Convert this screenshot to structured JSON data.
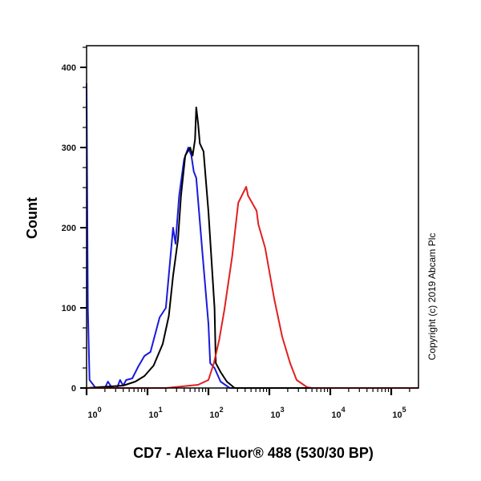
{
  "chart_data": {
    "type": "line",
    "title": "",
    "xlabel": "CD7 - Alexa Fluor® 488 (530/30 BP)",
    "ylabel": "Count",
    "x_scale": "log",
    "xlim": [
      1,
      280000
    ],
    "ylim": [
      0,
      427
    ],
    "x_tick_labels": [
      {
        "value": 1,
        "base": "10",
        "exp": "0"
      },
      {
        "value": 10,
        "base": "10",
        "exp": "1"
      },
      {
        "value": 100,
        "base": "10",
        "exp": "2"
      },
      {
        "value": 1000,
        "base": "10",
        "exp": "3"
      },
      {
        "value": 10000,
        "base": "10",
        "exp": "4"
      },
      {
        "value": 100000,
        "base": "10",
        "exp": "5"
      }
    ],
    "y_ticks": [
      0,
      100,
      200,
      300,
      400
    ],
    "grid": false,
    "legend": "none",
    "series": [
      {
        "color": "#1a1adc",
        "points": [
          [
            1,
            380
          ],
          [
            1.05,
            100
          ],
          [
            1.12,
            10
          ],
          [
            1.26,
            5
          ],
          [
            1.41,
            0
          ],
          [
            2,
            0
          ],
          [
            2.24,
            8
          ],
          [
            2.63,
            0
          ],
          [
            3.16,
            0
          ],
          [
            3.55,
            10
          ],
          [
            3.98,
            3
          ],
          [
            4.47,
            10
          ],
          [
            5.62,
            12
          ],
          [
            7.08,
            27
          ],
          [
            8.91,
            40
          ],
          [
            11.2,
            45
          ],
          [
            15.8,
            88
          ],
          [
            20,
            100
          ],
          [
            26.3,
            200
          ],
          [
            28.8,
            180
          ],
          [
            33.1,
            240
          ],
          [
            39.8,
            285
          ],
          [
            46.8,
            300
          ],
          [
            52.5,
            290
          ],
          [
            57.5,
            270
          ],
          [
            63.1,
            262
          ],
          [
            79.4,
            170
          ],
          [
            100,
            80
          ],
          [
            107,
            31
          ],
          [
            126,
            25
          ],
          [
            158,
            8
          ],
          [
            224,
            0
          ],
          [
            280000,
            0
          ]
        ]
      },
      {
        "color": "#000000",
        "points": [
          [
            1,
            0
          ],
          [
            3.98,
            3
          ],
          [
            6.31,
            8
          ],
          [
            8.91,
            15
          ],
          [
            12.6,
            28
          ],
          [
            17.8,
            55
          ],
          [
            22.4,
            90
          ],
          [
            26.3,
            140
          ],
          [
            31.6,
            185
          ],
          [
            35.5,
            240
          ],
          [
            41.7,
            290
          ],
          [
            50.1,
            300
          ],
          [
            55,
            290
          ],
          [
            60.3,
            310
          ],
          [
            63.1,
            350
          ],
          [
            67.6,
            330
          ],
          [
            72.4,
            305
          ],
          [
            83.2,
            295
          ],
          [
            100,
            220
          ],
          [
            126,
            100
          ],
          [
            132,
            31
          ],
          [
            158,
            20
          ],
          [
            200,
            8
          ],
          [
            269,
            0
          ],
          [
            280000,
            0
          ]
        ]
      },
      {
        "color": "#e02020",
        "points": [
          [
            1,
            0
          ],
          [
            20,
            0
          ],
          [
            67.6,
            4
          ],
          [
            100,
            10
          ],
          [
            123,
            31
          ],
          [
            150,
            60
          ],
          [
            182,
            97
          ],
          [
            245,
            164
          ],
          [
            309,
            231
          ],
          [
            417,
            251
          ],
          [
            447,
            240
          ],
          [
            617,
            221
          ],
          [
            661,
            204
          ],
          [
            851,
            175
          ],
          [
            1202,
            111
          ],
          [
            1622,
            64
          ],
          [
            2188,
            31
          ],
          [
            2800,
            10
          ],
          [
            4169,
            1
          ],
          [
            5000,
            0
          ],
          [
            280000,
            0
          ]
        ]
      }
    ]
  },
  "watermark": "Copyright (c) 2019 Abcam Plc"
}
